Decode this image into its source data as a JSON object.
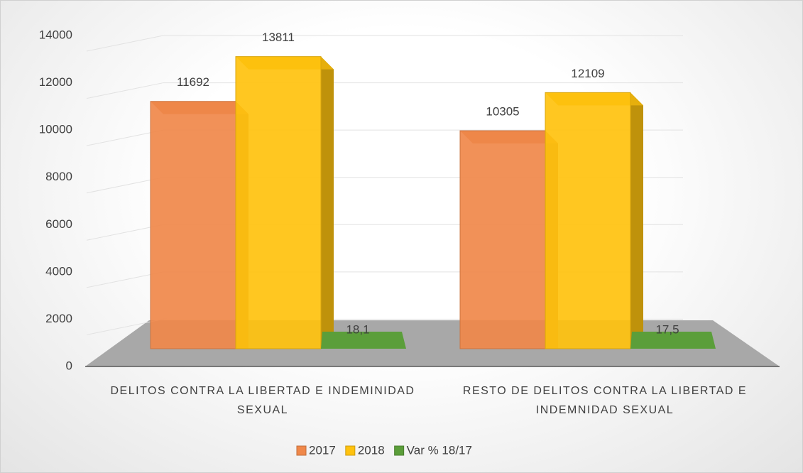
{
  "chart_data": {
    "type": "bar3d",
    "categories": [
      "DELITOS CONTRA LA LIBERTAD E INDEMINIDAD SEXUAL",
      "RESTO DE DELITOS CONTRA LA LIBERTAD E INDEMNIDAD SEXUAL"
    ],
    "series": [
      {
        "name": "2017",
        "color": "#f0884a",
        "values": [
          11692,
          10305
        ]
      },
      {
        "name": "2018",
        "color": "#ffc20e",
        "values": [
          13811,
          12109
        ]
      },
      {
        "name": "Var % 18/17",
        "color": "#5b9e3a",
        "values": [
          18.1,
          17.5
        ],
        "value_labels": [
          "18,1",
          "17,5"
        ]
      }
    ],
    "ylim": [
      0,
      14000
    ],
    "yticks": [
      0,
      2000,
      4000,
      6000,
      8000,
      10000,
      12000,
      14000
    ],
    "grid": true,
    "legend": "bottom"
  }
}
